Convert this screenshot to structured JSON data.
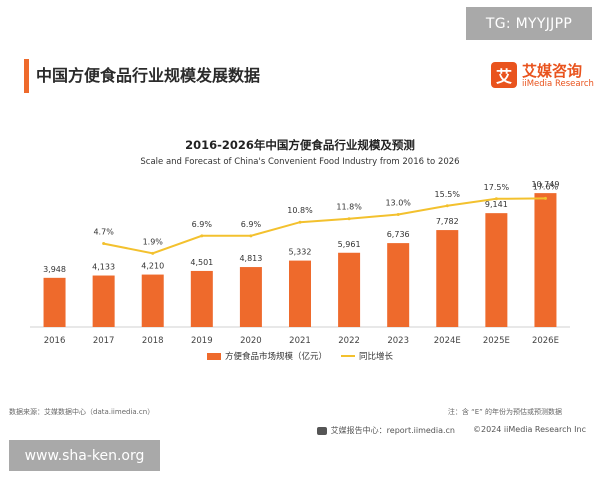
{
  "header": {
    "tg_badge": "TG: MYYJJPP",
    "page_title": "中国方便食品行业规模发展数据",
    "brand_icon_glyph": "艾",
    "brand_cn": "艾媒咨询",
    "brand_en": "iiMedia Research"
  },
  "footer": {
    "source": "数据来源：艾媒数据中心（data.iimedia.cn）",
    "note": "注：含 “E” 的年份为预估或预测数据",
    "report_center": "艾媒报告中心：report.iimedia.cn",
    "copyright": "©2024  iiMedia Research Inc",
    "watermark": "www.sha-ken.org"
  },
  "colors": {
    "bar": "#ee6a2c",
    "line": "#f3c12e",
    "brand": "#e9531d"
  },
  "chart_data": {
    "type": "bar",
    "title": "2016-2026年中国方便食品行业规模及预测",
    "subtitle": "Scale and Forecast of China's Convenient Food Industry from 2016 to 2026",
    "categories": [
      "2016",
      "2017",
      "2018",
      "2019",
      "2020",
      "2021",
      "2022",
      "2023",
      "2024E",
      "2025E",
      "2026E"
    ],
    "series": [
      {
        "name": "方便食品市场规模（亿元）",
        "type": "bar",
        "values": [
          3948,
          4133,
          4210,
          4501,
          4813,
          5332,
          5961,
          6736,
          7782,
          9141,
          10749
        ],
        "labels": [
          "3,948",
          "4,133",
          "4,210",
          "4,501",
          "4,813",
          "5,332",
          "5,961",
          "6,736",
          "7,782",
          "9,141",
          "10,749"
        ]
      },
      {
        "name": "同比增长",
        "type": "line",
        "values": [
          null,
          4.7,
          1.9,
          6.9,
          6.9,
          10.8,
          11.8,
          13.0,
          15.5,
          17.5,
          17.6
        ],
        "labels": [
          "",
          "4.7%",
          "1.9%",
          "6.9%",
          "6.9%",
          "10.8%",
          "11.8%",
          "13.0%",
          "15.5%",
          "17.5%",
          "17.6%"
        ]
      }
    ],
    "ylim": [
      0,
      11000
    ],
    "y2lim": [
      0,
      20
    ],
    "legend_position": "bottom-center",
    "grid": false
  }
}
